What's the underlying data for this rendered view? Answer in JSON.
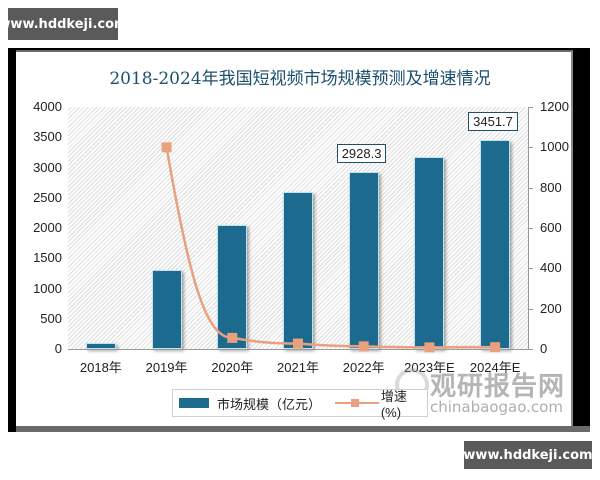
{
  "watermark": {
    "top": "www.hddkeji.com",
    "bottom": "www.hddkeji.com",
    "source_cn": "观研报告网",
    "source_url": "chinabaogao.com"
  },
  "colors": {
    "bar": "#1c6a8e",
    "line": "#e8a07e",
    "title": "#1d4f6e"
  },
  "chart_data": {
    "type": "bar",
    "title": "2018-2024年我国短视频市场规模预测及增速情况",
    "categories": [
      "2018年",
      "2019年",
      "2020年",
      "2021年",
      "2022年",
      "2023年E",
      "2024年E"
    ],
    "series": [
      {
        "name": "市场规模（亿元）",
        "type": "bar",
        "axis": "left",
        "values": [
          100,
          1300,
          2050,
          2600,
          2928.3,
          3170,
          3451.7
        ]
      },
      {
        "name": "增速(%)",
        "type": "line",
        "axis": "right",
        "values": [
          null,
          1000,
          55,
          27,
          13,
          8,
          9
        ]
      }
    ],
    "data_labels": [
      {
        "category": "2022年",
        "value": "2928.3"
      },
      {
        "category": "2024年E",
        "value": "3451.7"
      }
    ],
    "y_left": {
      "ticks": [
        "4000",
        "3500",
        "3000",
        "2500",
        "2000",
        "1500",
        "1000",
        "500",
        "0"
      ],
      "range": [
        0,
        4000
      ]
    },
    "y_right": {
      "ticks": [
        "1200",
        "1000",
        "800",
        "600",
        "400",
        "200",
        "0"
      ],
      "range": [
        0,
        1200
      ]
    },
    "legend_position": "bottom",
    "grid": false
  }
}
